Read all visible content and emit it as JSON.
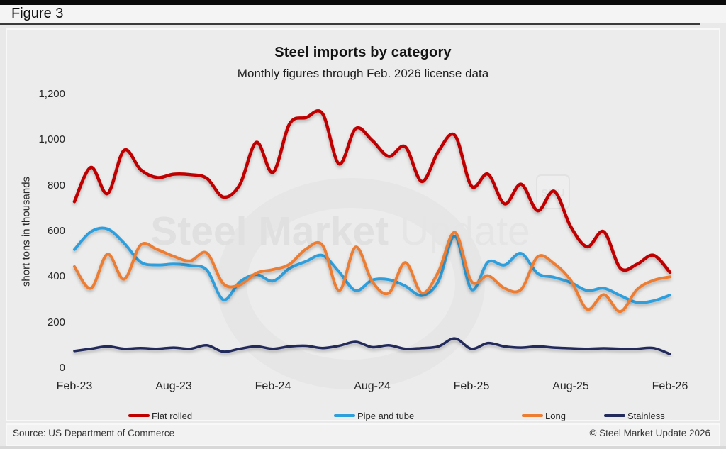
{
  "figure_label": "Figure 3",
  "title": "Steel imports by category",
  "subtitle": "Monthly figures through Feb. 2026 license data",
  "source": "Source: US Department of Commerce",
  "copyright": "© Steel Market Update 2026",
  "watermark": {
    "bold_text": "Steel Market",
    "light_text": "Update",
    "badge_text": "SMU"
  },
  "y_axis": {
    "label": "short tons in thousands",
    "tick_labels": [
      "1,200",
      "1,000",
      "800",
      "600",
      "400",
      "200",
      "0"
    ],
    "tick_values": [
      1200,
      1000,
      800,
      600,
      400,
      200,
      0
    ]
  },
  "x_axis": {
    "tick_labels": [
      "Feb-23",
      "Aug-23",
      "Feb-24",
      "Aug-24",
      "Feb-25",
      "Aug-25",
      "Feb-26"
    ]
  },
  "chart_data": {
    "type": "line",
    "title": "Steel imports by category",
    "subtitle": "Monthly figures through Feb. 2026 license data",
    "xlabel": "",
    "ylabel": "short tons in thousands",
    "ylim": [
      0,
      1200
    ],
    "grid": false,
    "legend_position": "bottom",
    "x": [
      "Feb-23",
      "Mar-23",
      "Apr-23",
      "May-23",
      "Jun-23",
      "Jul-23",
      "Aug-23",
      "Sep-23",
      "Oct-23",
      "Nov-23",
      "Dec-23",
      "Jan-24",
      "Feb-24",
      "Mar-24",
      "Apr-24",
      "May-24",
      "Jun-24",
      "Jul-24",
      "Aug-24",
      "Sep-24",
      "Oct-24",
      "Nov-24",
      "Dec-24",
      "Jan-25",
      "Feb-25",
      "Mar-25",
      "Apr-25",
      "May-25",
      "Jun-25",
      "Jul-25",
      "Aug-25",
      "Sep-25",
      "Oct-25",
      "Nov-25",
      "Dec-25",
      "Jan-26",
      "Feb-26"
    ],
    "series": [
      {
        "name": "Flat rolled",
        "color": "#c00000",
        "stroke_width": 4.5,
        "values": [
          730,
          880,
          765,
          955,
          870,
          835,
          850,
          848,
          832,
          750,
          805,
          990,
          858,
          1070,
          1098,
          1115,
          895,
          1050,
          998,
          928,
          970,
          818,
          950,
          1020,
          798,
          850,
          720,
          806,
          690,
          775,
          620,
          532,
          598,
          438,
          455,
          495,
          420
        ]
      },
      {
        "name": "Pipe and tube",
        "color": "#2f9fdc",
        "stroke_width": 4,
        "values": [
          520,
          598,
          610,
          548,
          465,
          452,
          456,
          450,
          430,
          300,
          378,
          410,
          382,
          437,
          468,
          494,
          422,
          340,
          386,
          388,
          360,
          318,
          380,
          578,
          345,
          465,
          452,
          503,
          415,
          398,
          375,
          340,
          350,
          318,
          288,
          295,
          320
        ]
      },
      {
        "name": "Long",
        "color": "#ed7d31",
        "stroke_width": 4,
        "values": [
          445,
          350,
          500,
          390,
          540,
          520,
          490,
          470,
          505,
          370,
          365,
          417,
          432,
          455,
          522,
          538,
          340,
          531,
          380,
          329,
          463,
          329,
          422,
          595,
          380,
          405,
          350,
          345,
          488,
          458,
          385,
          258,
          322,
          248,
          344,
          385,
          400
        ]
      },
      {
        "name": "Stainless",
        "color": "#232a5c",
        "stroke_width": 3.5,
        "values": [
          75,
          85,
          95,
          85,
          88,
          85,
          90,
          85,
          100,
          72,
          85,
          95,
          85,
          95,
          98,
          88,
          98,
          115,
          92,
          100,
          85,
          88,
          95,
          130,
          85,
          110,
          95,
          90,
          95,
          90,
          87,
          85,
          87,
          85,
          85,
          88,
          62
        ]
      }
    ]
  }
}
